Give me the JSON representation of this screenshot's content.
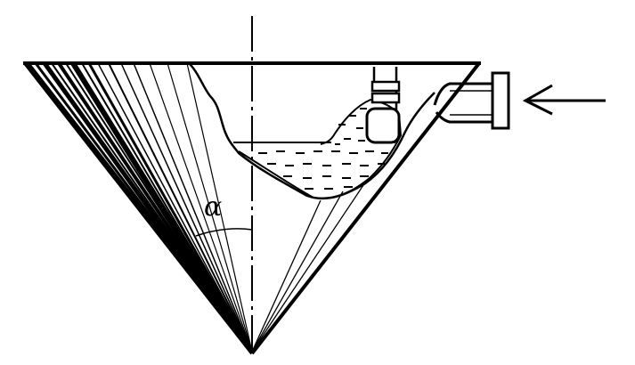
{
  "figure": {
    "angle_label": "α",
    "colors": {
      "ink": "#000000",
      "paper": "#ffffff"
    }
  }
}
